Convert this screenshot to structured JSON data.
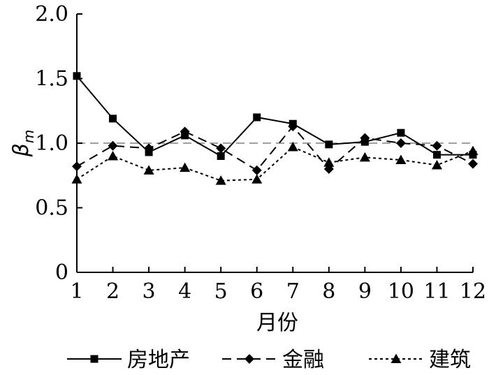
{
  "chart_data": {
    "type": "line",
    "title": "",
    "xlabel": "月份",
    "ylabel_base": "β",
    "ylabel_sub": "m",
    "categories": [
      "1",
      "2",
      "3",
      "4",
      "5",
      "6",
      "7",
      "8",
      "9",
      "10",
      "11",
      "12"
    ],
    "ylim": [
      0,
      2.0
    ],
    "yticks": [
      "0",
      "0.5",
      "1.0",
      "1.5",
      "2.0"
    ],
    "reference_line": 1.0,
    "grid": false,
    "legend_position": "bottom",
    "series": [
      {
        "name": "房地产",
        "marker": "square",
        "dash": "solid",
        "color": "#000000",
        "values": [
          1.52,
          1.19,
          0.93,
          1.06,
          0.9,
          1.2,
          1.15,
          0.99,
          1.01,
          1.08,
          0.91,
          0.91
        ]
      },
      {
        "name": "金融",
        "marker": "diamond",
        "dash": "dashed",
        "color": "#000000",
        "values": [
          0.82,
          0.98,
          0.96,
          1.09,
          0.96,
          0.79,
          1.13,
          0.8,
          1.04,
          1.0,
          0.98,
          0.84
        ]
      },
      {
        "name": "建筑",
        "marker": "triangle",
        "dash": "dotted",
        "color": "#000000",
        "values": [
          0.72,
          0.9,
          0.79,
          0.81,
          0.71,
          0.72,
          0.97,
          0.85,
          0.89,
          0.87,
          0.83,
          0.94
        ]
      }
    ]
  }
}
